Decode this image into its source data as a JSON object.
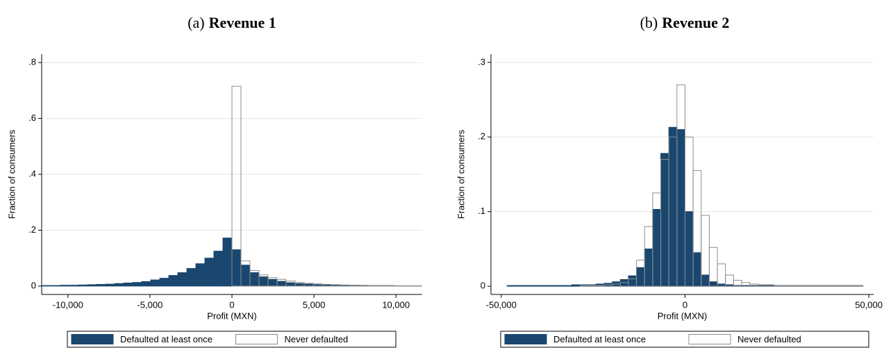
{
  "chart_data": [
    {
      "type": "histogram",
      "panel_label": "(a)",
      "title": "Revenue 1",
      "xlabel": "Profit (MXN)",
      "ylabel": "Fraction of consumers",
      "bins": [
        -11550,
        -11000,
        -10450,
        -9900,
        -9350,
        -8800,
        -8250,
        -7700,
        -7150,
        -6600,
        -6050,
        -5500,
        -4950,
        -4400,
        -3850,
        -3300,
        -2750,
        -2200,
        -1650,
        -1100,
        -550,
        0,
        550,
        1100,
        1650,
        2200,
        2750,
        3300,
        3850,
        4400,
        4950,
        5500,
        6050,
        6600,
        7150,
        7700,
        8250,
        8800,
        9350,
        9900,
        10450,
        11000,
        11550
      ],
      "series": [
        {
          "name": "Defaulted at least once",
          "color": "#1a476f",
          "edgecolor": "#1a476f",
          "values": [
            0.002,
            0.002,
            0.003,
            0.003,
            0.004,
            0.005,
            0.006,
            0.007,
            0.009,
            0.011,
            0.013,
            0.016,
            0.022,
            0.028,
            0.038,
            0.048,
            0.063,
            0.08,
            0.1,
            0.125,
            0.172,
            0.13,
            0.075,
            0.048,
            0.033,
            0.024,
            0.017,
            0.012,
            0.009,
            0.007,
            0.005,
            0.004,
            0.004,
            0.003,
            0.003,
            0.002,
            0.002,
            0.002,
            0.002,
            0.001,
            0.001,
            0.001
          ]
        },
        {
          "name": "Never defaulted",
          "color": "none",
          "edgecolor": "#8c8c8c",
          "values": [
            0,
            0,
            0,
            0,
            0,
            0,
            0,
            0,
            0,
            0,
            0,
            0,
            0,
            0,
            0,
            0,
            0,
            0,
            0,
            0,
            0,
            0.715,
            0.09,
            0.056,
            0.04,
            0.03,
            0.024,
            0.018,
            0.013,
            0.01,
            0.008,
            0.006,
            0.005,
            0.004,
            0.003,
            0.003,
            0.002,
            0.002,
            0.002,
            0.001,
            0.001,
            0.001
          ]
        }
      ],
      "xlim": [
        -11600,
        11600
      ],
      "ylim": [
        -0.03,
        0.83
      ],
      "xticks": [
        {
          "value": -10000,
          "label": "-10,000"
        },
        {
          "value": -5000,
          "label": "-5,000"
        },
        0,
        {
          "value": 5000,
          "label": "5,000"
        },
        {
          "value": 10000,
          "label": "10,000"
        }
      ],
      "yticks": [
        0,
        {
          "value": 0.2,
          "label": ".2"
        },
        {
          "value": 0.4,
          "label": ".4"
        },
        {
          "value": 0.6,
          "label": ".6"
        },
        {
          "value": 0.8,
          "label": ".8"
        }
      ],
      "grid": true
    },
    {
      "type": "histogram",
      "panel_label": "(b)",
      "title": "Revenue 2",
      "xlabel": "Profit (MXN)",
      "ylabel": "Fraction of consumers",
      "bins": [
        -48400,
        -46200,
        -44000,
        -41800,
        -39600,
        -37400,
        -35200,
        -33000,
        -30800,
        -28600,
        -26400,
        -24200,
        -22000,
        -19800,
        -17600,
        -15400,
        -13200,
        -11000,
        -8800,
        -6600,
        -4400,
        -2200,
        0,
        2200,
        4400,
        6600,
        8800,
        11000,
        13200,
        15400,
        17600,
        19800,
        22000,
        24200,
        26400,
        28600,
        30800,
        33000,
        35200,
        37400,
        39600,
        41800,
        44000,
        46200,
        48400
      ],
      "series": [
        {
          "name": "Defaulted at least once",
          "color": "#1a476f",
          "edgecolor": "#1a476f",
          "values": [
            0.001,
            0.001,
            0.001,
            0.001,
            0.001,
            0.001,
            0.001,
            0.001,
            0.002,
            0.002,
            0.002,
            0.003,
            0.004,
            0.006,
            0.009,
            0.014,
            0.025,
            0.05,
            0.103,
            0.178,
            0.213,
            0.21,
            0.1,
            0.045,
            0.015,
            0.006,
            0.003,
            0.002,
            0.001,
            0.001,
            0.001,
            0.001,
            0.001,
            0.001,
            0.001,
            0.001,
            0.001,
            0.001,
            0.001,
            0.001,
            0.001,
            0.001,
            0.001,
            0.001
          ]
        },
        {
          "name": "Never defaulted",
          "color": "none",
          "edgecolor": "#8c8c8c",
          "values": [
            0,
            0,
            0,
            0,
            0,
            0,
            0,
            0,
            0,
            0.001,
            0.001,
            0.001,
            0.002,
            0.003,
            0.005,
            0.01,
            0.035,
            0.08,
            0.125,
            0.17,
            0.2,
            0.27,
            0.2,
            0.155,
            0.095,
            0.052,
            0.03,
            0.015,
            0.008,
            0.005,
            0.003,
            0.002,
            0.002,
            0.001,
            0.001,
            0.001,
            0.001,
            0.001,
            0.001,
            0.001,
            0.001,
            0.001,
            0.001,
            0.001
          ]
        }
      ],
      "xlim": [
        -52800,
        51300
      ],
      "ylim": [
        -0.011,
        0.311
      ],
      "xticks": [
        {
          "value": -50000,
          "label": "-50,000"
        },
        0,
        {
          "value": 50000,
          "label": "50,000"
        }
      ],
      "yticks": [
        0,
        {
          "value": 0.1,
          "label": ".1"
        },
        {
          "value": 0.2,
          "label": ".2"
        },
        {
          "value": 0.3,
          "label": ".3"
        }
      ],
      "grid": true
    }
  ]
}
